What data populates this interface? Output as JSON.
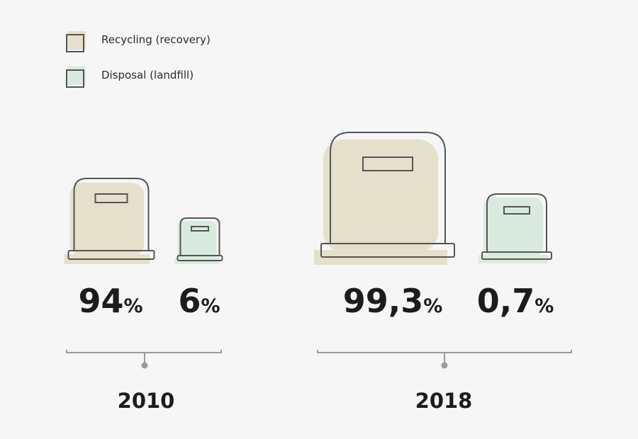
{
  "chart_data": {
    "type": "bar",
    "categories": [
      "2010",
      "2018"
    ],
    "series": [
      {
        "name": "Recycling (recovery)",
        "values": [
          94,
          99.3
        ],
        "labels": [
          "94",
          "99,3"
        ],
        "color": "#e5e0cc"
      },
      {
        "name": "Disposal (landfill)",
        "values": [
          6,
          0.7
        ],
        "labels": [
          "6",
          "0,7"
        ],
        "color": "#d9eadf"
      }
    ],
    "unit": "%"
  },
  "colors": {
    "background": "#f6f6f6",
    "outline": "#555555",
    "recycling": "#e5e0cc",
    "disposal": "#d9eadf",
    "bracket": "#9a9a9a"
  }
}
